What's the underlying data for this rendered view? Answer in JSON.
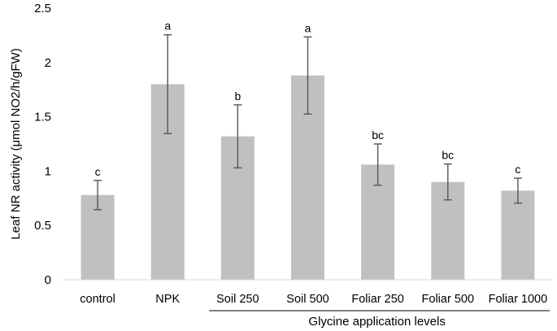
{
  "chart_data": {
    "type": "bar",
    "categories": [
      "control",
      "NPK",
      "Soil 250",
      "Soil 500",
      "Foliar 250",
      "Foliar 500",
      "Foliar 1000"
    ],
    "values": [
      0.78,
      1.8,
      1.32,
      1.88,
      1.06,
      0.9,
      0.82
    ],
    "errors": [
      0.135,
      0.455,
      0.29,
      0.355,
      0.19,
      0.165,
      0.115
    ],
    "significance_letters": [
      "c",
      "a",
      "b",
      "a",
      "bc",
      "bc",
      "c"
    ],
    "ylabel": "Leaf NR activity (μmol NO2/h/gFW)",
    "xlabel": "Glycine application levels",
    "xlabel_spans_categories": [
      "Soil 250",
      "Soil 500",
      "Foliar 250",
      "Foliar 500",
      "Foliar 1000"
    ],
    "ylim": [
      0,
      2.5
    ],
    "yticks": [
      "0",
      "0.5",
      "1",
      "1.5",
      "2",
      "2.5"
    ],
    "grid": false,
    "bar_color": "#c0c0c0",
    "error_bar_color": "#555555"
  }
}
